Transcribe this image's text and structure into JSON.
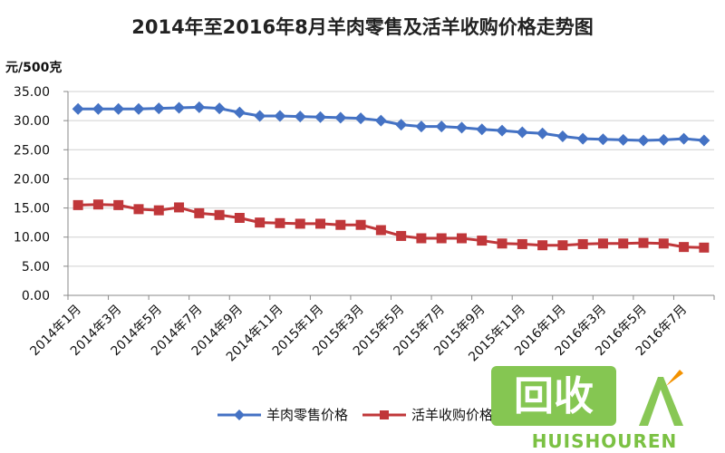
{
  "chart_data": {
    "type": "line",
    "title": "2014年至2016年8月羊肉零售及活羊收购价格走势图",
    "ylabel": "元/500克",
    "ylim": [
      0,
      35
    ],
    "yticks": [
      "35.00",
      "30.00",
      "25.00",
      "20.00",
      "15.00",
      "10.00",
      "5.00",
      "0.00"
    ],
    "ytick_values": [
      35,
      30,
      25,
      20,
      15,
      10,
      5,
      0
    ],
    "x_tick_labels": [
      "2014年1月",
      "2014年3月",
      "2014年5月",
      "2014年7月",
      "2014年9月",
      "2014年11月",
      "2015年1月",
      "2015年3月",
      "2015年5月",
      "2015年7月",
      "2015年9月",
      "2015年11月",
      "2016年1月",
      "2016年3月",
      "2016年5月",
      "2016年7月"
    ],
    "x": [
      "2014年1月",
      "2014年2月",
      "2014年3月",
      "2014年4月",
      "2014年5月",
      "2014年6月",
      "2014年7月",
      "2014年8月",
      "2014年9月",
      "2014年10月",
      "2014年11月",
      "2014年12月",
      "2015年1月",
      "2015年2月",
      "2015年3月",
      "2015年4月",
      "2015年5月",
      "2015年6月",
      "2015年7月",
      "2015年8月",
      "2015年9月",
      "2015年10月",
      "2015年11月",
      "2015年12月",
      "2016年1月",
      "2016年2月",
      "2016年3月",
      "2016年4月",
      "2016年5月",
      "2016年6月",
      "2016年7月",
      "2016年8月"
    ],
    "grid": "horizontal",
    "legend_position": "bottom",
    "series": [
      {
        "name": "羊肉零售价格",
        "color": "#4472C4",
        "marker": "diamond",
        "values": [
          32.0,
          32.0,
          32.0,
          32.0,
          32.1,
          32.2,
          32.3,
          32.1,
          31.4,
          30.8,
          30.8,
          30.7,
          30.6,
          30.5,
          30.4,
          30.0,
          29.3,
          29.0,
          29.0,
          28.8,
          28.5,
          28.3,
          28.0,
          27.8,
          27.3,
          26.9,
          26.8,
          26.7,
          26.6,
          26.7,
          26.9,
          26.6
        ]
      },
      {
        "name": "活羊收购价格",
        "color": "#C0373A",
        "marker": "square",
        "values": [
          15.5,
          15.6,
          15.5,
          14.8,
          14.6,
          15.1,
          14.1,
          13.8,
          13.3,
          12.5,
          12.4,
          12.3,
          12.3,
          12.1,
          12.1,
          11.2,
          10.2,
          9.8,
          9.8,
          9.8,
          9.4,
          8.9,
          8.8,
          8.6,
          8.6,
          8.8,
          8.9,
          8.9,
          9.0,
          8.9,
          8.3,
          8.2
        ]
      }
    ]
  },
  "watermark": {
    "logo_text": "回收",
    "brand_text": "HUISHOUREN",
    "colors": {
      "green": "#7BC143",
      "orange": "#F39200"
    }
  }
}
